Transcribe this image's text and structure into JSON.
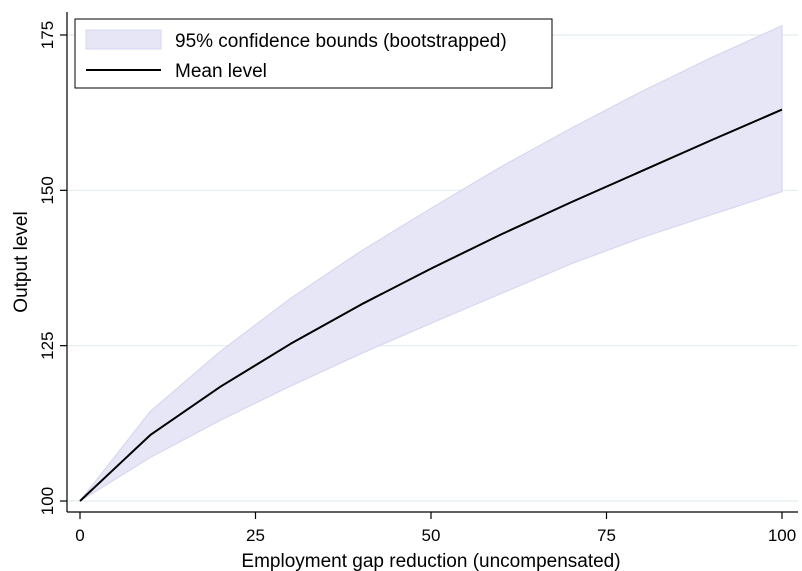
{
  "chart_data": {
    "type": "line",
    "title": "",
    "xlabel": "Employment gap reduction (uncompensated)",
    "ylabel": "Output level",
    "xlim": [
      0,
      100
    ],
    "ylim": [
      100,
      177
    ],
    "x_ticks": [
      0,
      25,
      50,
      75,
      100
    ],
    "y_ticks": [
      100,
      125,
      150,
      175
    ],
    "grid": "horizontal",
    "legend_position": "top-left",
    "x": [
      0,
      10,
      20,
      30,
      40,
      50,
      60,
      70,
      80,
      90,
      100
    ],
    "series": [
      {
        "name": "Mean level",
        "type": "line",
        "color": "#000000",
        "values": [
          100,
          110.6,
          118.4,
          125.3,
          131.6,
          137.4,
          142.9,
          148.1,
          153.1,
          158.1,
          163.0
        ]
      },
      {
        "name": "95% confidence bounds (bootstrapped)",
        "type": "band",
        "color": "#e6e6f7",
        "edge_color": "#d7d7f0",
        "lower": [
          100,
          107.0,
          113.0,
          118.5,
          123.7,
          128.6,
          133.4,
          138.2,
          142.4,
          146.1,
          149.8
        ],
        "upper": [
          100,
          114.4,
          124.1,
          132.6,
          140.2,
          147.1,
          153.8,
          160.0,
          165.9,
          171.4,
          176.5
        ]
      }
    ]
  }
}
